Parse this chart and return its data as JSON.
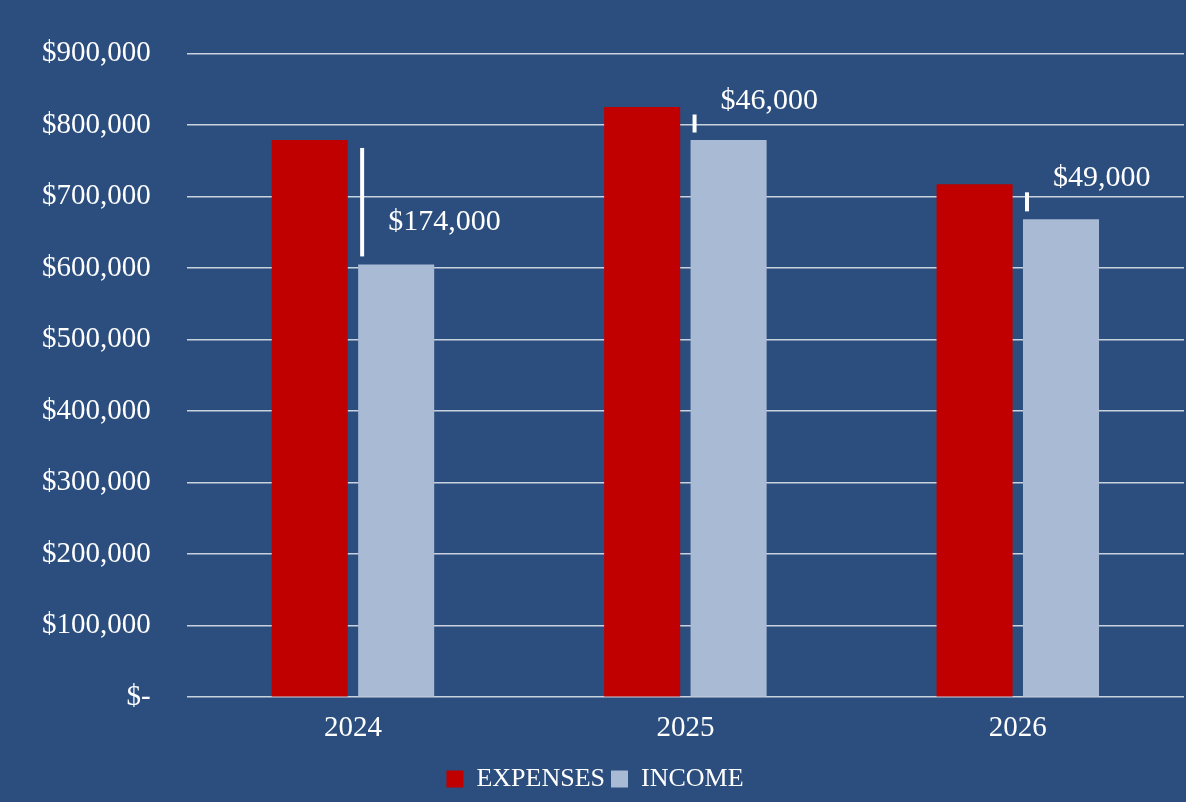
{
  "chart_data": {
    "type": "bar",
    "categories": [
      "2024",
      "2025",
      "2026"
    ],
    "series": [
      {
        "name": "EXPENSES",
        "color": "#c00000",
        "values": [
          779000,
          825000,
          717000
        ]
      },
      {
        "name": "INCOME",
        "color": "#a9bad5",
        "values": [
          605000,
          779000,
          668000
        ]
      }
    ],
    "ylim": [
      0,
      900000
    ],
    "yticks": [
      {
        "value": 0,
        "label": "$-"
      },
      {
        "value": 100000,
        "label": "$100,000"
      },
      {
        "value": 200000,
        "label": "$200,000"
      },
      {
        "value": 300000,
        "label": "$300,000"
      },
      {
        "value": 400000,
        "label": "$400,000"
      },
      {
        "value": 500000,
        "label": "$500,000"
      },
      {
        "value": 600000,
        "label": "$600,000"
      },
      {
        "value": 700000,
        "label": "$700,000"
      },
      {
        "value": 800000,
        "label": "$800,000"
      },
      {
        "value": 900000,
        "label": "$900,000"
      }
    ],
    "annotations": [
      "$174,000",
      "$46,000",
      "$49,000"
    ],
    "grid": "y",
    "legend": "bottom"
  }
}
